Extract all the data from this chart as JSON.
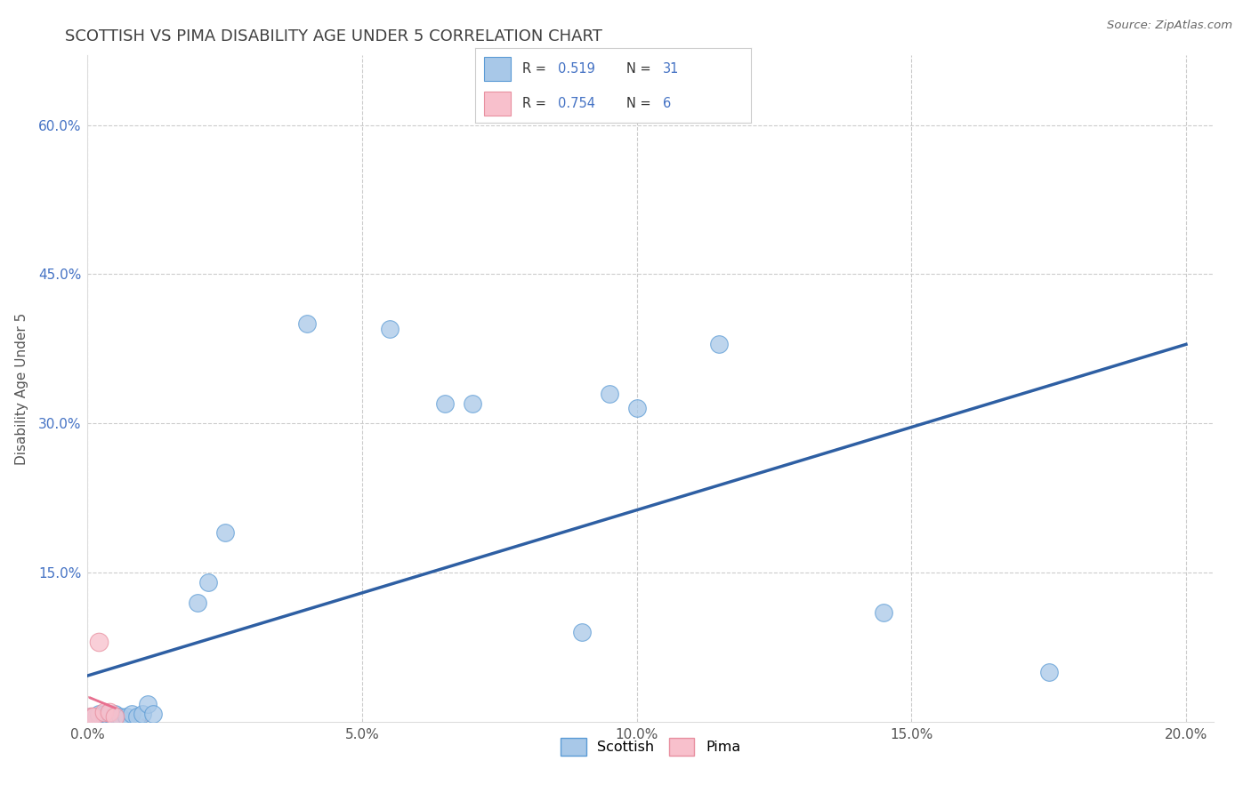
{
  "title": "SCOTTISH VS PIMA DISABILITY AGE UNDER 5 CORRELATION CHART",
  "source": "Source: ZipAtlas.com",
  "ylabel": "Disability Age Under 5",
  "xlim": [
    0.0,
    0.205
  ],
  "ylim": [
    0.0,
    0.67
  ],
  "xtick_labels": [
    "0.0%",
    "5.0%",
    "10.0%",
    "15.0%",
    "20.0%"
  ],
  "xtick_vals": [
    0.0,
    0.05,
    0.1,
    0.15,
    0.2
  ],
  "ytick_labels": [
    "15.0%",
    "30.0%",
    "45.0%",
    "60.0%"
  ],
  "ytick_vals": [
    0.15,
    0.3,
    0.45,
    0.6
  ],
  "scottish_color": "#a8c8e8",
  "scottish_edge_color": "#5b9bd5",
  "pima_color": "#f8c0cc",
  "pima_edge_color": "#e890a0",
  "scottish_line_color": "#2e5fa3",
  "pima_line_color": "#e87090",
  "dashed_line_color": "#e8a0b0",
  "r_scottish": "0.519",
  "n_scottish": "31",
  "r_pima": "0.754",
  "n_pima": "6",
  "scottish_x": [
    0.001,
    0.001,
    0.001,
    0.002,
    0.002,
    0.002,
    0.003,
    0.003,
    0.004,
    0.004,
    0.005,
    0.005,
    0.006,
    0.007,
    0.008,
    0.009,
    0.01,
    0.011,
    0.013,
    0.015,
    0.018,
    0.02,
    0.022,
    0.025,
    0.04,
    0.055,
    0.065,
    0.095,
    0.1,
    0.145,
    0.175
  ],
  "scottish_y": [
    0.005,
    0.008,
    0.01,
    0.005,
    0.008,
    0.01,
    0.005,
    0.008,
    0.005,
    0.008,
    0.005,
    0.008,
    0.008,
    0.008,
    0.01,
    0.008,
    0.01,
    0.019,
    0.01,
    0.012,
    0.12,
    0.14,
    0.135,
    0.185,
    0.405,
    0.395,
    0.325,
    0.33,
    0.315,
    0.11,
    0.05
  ],
  "pima_x": [
    0.001,
    0.002,
    0.003,
    0.004,
    0.005,
    0.006
  ],
  "pima_y": [
    0.005,
    0.005,
    0.01,
    0.01,
    0.08,
    0.01
  ],
  "background_color": "#ffffff",
  "grid_color": "#cccccc",
  "title_color": "#404040",
  "label_color": "#606060",
  "tick_color": "#4472c4"
}
